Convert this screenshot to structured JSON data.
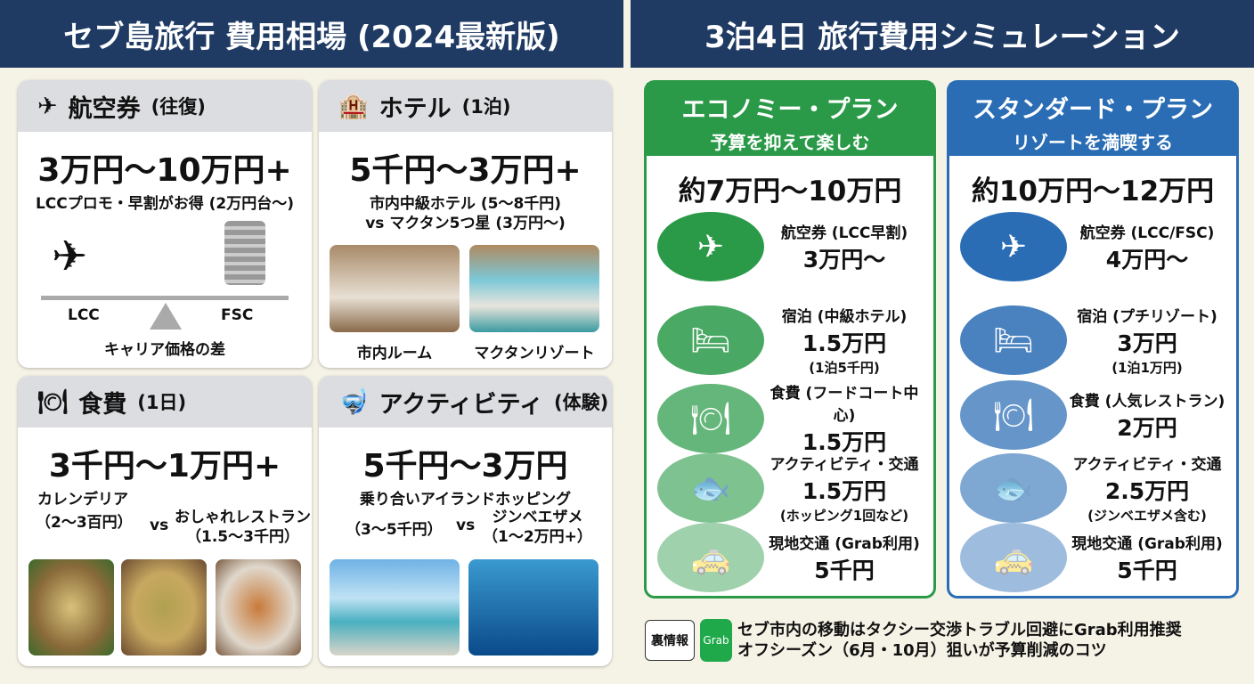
{
  "left_header": "セブ島旅行 費用相場 (2024最新版)",
  "right_header": "3泊4日 旅行費用シミュレーション",
  "cards": {
    "flight": {
      "title": "航空券",
      "title_note": "(往復)",
      "price": "3万円〜10万円+",
      "note": "LCCプロモ・早割がお得 (2万円台〜)",
      "lcc": "LCC",
      "fsc": "FSC",
      "caption": "キャリア価格の差"
    },
    "hotel": {
      "title": "ホテル",
      "title_note": "(1泊)",
      "price": "5千円〜3万円+",
      "note1": "市内中級ホテル (5〜8千円)",
      "note2": "vs マクタン5つ星 (3万円〜)",
      "photo1": "市内ルーム",
      "photo2": "マクタンリゾート"
    },
    "food": {
      "title": "食費",
      "title_note": "(1日)",
      "price": "3千円〜1万円+",
      "a": "カレンデリア",
      "a_price": "（2〜3百円）",
      "vs": "vs",
      "b": "おしゃれレストラン",
      "b_price": "（1.5〜3千円）"
    },
    "activity": {
      "title": "アクティビティ",
      "title_note": "(体験)",
      "price": "5千円〜3万円",
      "a": "乗り合いアイランドホッピング",
      "a_price": "（3〜5千円）",
      "vs": "vs",
      "b": "ジンベエザメ",
      "b_price": "（1〜2万円+）"
    }
  },
  "plans": [
    {
      "title": "エコノミー・プラン",
      "subtitle": "予算を抑えて楽しむ",
      "total": "約7万円〜10万円",
      "color": "#2a9a48",
      "rows": [
        {
          "icon": "plane-icon",
          "label": "航空券 (LCC早割)",
          "value": "3万円〜",
          "note": ""
        },
        {
          "icon": "bed-icon",
          "label": "宿泊 (中級ホテル)",
          "value": "1.5万円",
          "note": "(1泊5千円)"
        },
        {
          "icon": "dining-icon",
          "label": "食費 (フードコート中心)",
          "value": "1.5万円",
          "note": ""
        },
        {
          "icon": "snorkel-fish-icon",
          "label": "アクティビティ・交通",
          "value": "1.5万円",
          "note": "(ホッピング1回など)"
        },
        {
          "icon": "taxi-icon",
          "label": "現地交通 (Grab利用)",
          "value": "5千円",
          "note": ""
        }
      ]
    },
    {
      "title": "スタンダード・プラン",
      "subtitle": "リゾートを満喫する",
      "total": "約10万円〜12万円",
      "color": "#2a6db5",
      "rows": [
        {
          "icon": "plane-icon",
          "label": "航空券 (LCC/FSC)",
          "value": "4万円〜",
          "note": ""
        },
        {
          "icon": "bed-icon",
          "label": "宿泊 (プチリゾート)",
          "value": "3万円",
          "note": "(1泊1万円)"
        },
        {
          "icon": "dining-icon",
          "label": "食費 (人気レストラン)",
          "value": "2万円",
          "note": ""
        },
        {
          "icon": "snorkel-fish-icon",
          "label": "アクティビティ・交通",
          "value": "2.5万円",
          "note": "(ジンベエザメ含む)"
        },
        {
          "icon": "taxi-icon",
          "label": "現地交通 (Grab利用)",
          "value": "5千円",
          "note": ""
        }
      ]
    }
  ],
  "tip": {
    "tag": "裏情報",
    "logo": "Grab",
    "line1": "セブ市内の移動はタクシー交渉トラブル回避にGrab利用推奨",
    "line2": "オフシーズン（6月・10月）狙いが予算削減のコツ"
  }
}
